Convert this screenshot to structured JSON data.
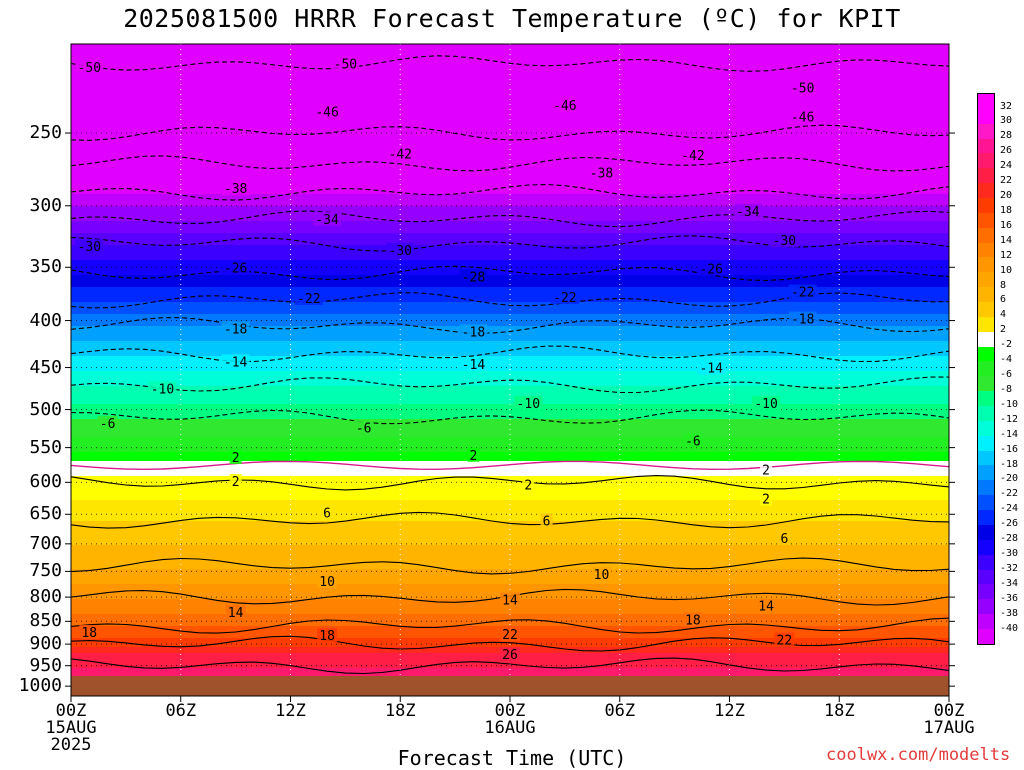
{
  "chart_data": {
    "type": "heatmap",
    "title": "2025081500 HRRR Forecast Temperature (ºC) for KPIT",
    "xlabel": "Forecast Time (UTC)",
    "ylabel": "",
    "x_ticks": [
      {
        "hour": 0,
        "lines": [
          "00Z",
          "15AUG",
          "2025"
        ]
      },
      {
        "hour": 6,
        "lines": [
          "06Z"
        ]
      },
      {
        "hour": 12,
        "lines": [
          "12Z"
        ]
      },
      {
        "hour": 18,
        "lines": [
          "18Z"
        ]
      },
      {
        "hour": 24,
        "lines": [
          "00Z",
          "16AUG"
        ]
      },
      {
        "hour": 30,
        "lines": [
          "06Z"
        ]
      },
      {
        "hour": 36,
        "lines": [
          "12Z"
        ]
      },
      {
        "hour": 42,
        "lines": [
          "18Z"
        ]
      },
      {
        "hour": 48,
        "lines": [
          "00Z",
          "17AUG"
        ]
      }
    ],
    "xlim": [
      0,
      48
    ],
    "y_ticks": [
      250,
      300,
      350,
      400,
      450,
      500,
      550,
      600,
      650,
      700,
      750,
      800,
      850,
      900,
      950,
      1000
    ],
    "ylim": [
      1025,
      200
    ],
    "y_scale": "log-pressure",
    "surface_pressure": 975,
    "colorbar_levels": [
      32,
      30,
      28,
      26,
      24,
      22,
      20,
      18,
      16,
      14,
      12,
      10,
      8,
      6,
      4,
      2,
      -2,
      -4,
      -6,
      -8,
      -10,
      -12,
      -14,
      -16,
      -18,
      -20,
      -22,
      -24,
      -26,
      -28,
      -30,
      -32,
      -34,
      -36,
      -38,
      -40
    ],
    "temperature_profile": [
      {
        "p": 210,
        "t": -50
      },
      {
        "p": 230,
        "t": -48
      },
      {
        "p": 250,
        "t": -46
      },
      {
        "p": 270,
        "t": -42
      },
      {
        "p": 290,
        "t": -38
      },
      {
        "p": 310,
        "t": -34
      },
      {
        "p": 330,
        "t": -30
      },
      {
        "p": 355,
        "t": -26
      },
      {
        "p": 380,
        "t": -22
      },
      {
        "p": 405,
        "t": -18
      },
      {
        "p": 435,
        "t": -14
      },
      {
        "p": 470,
        "t": -10
      },
      {
        "p": 510,
        "t": -6
      },
      {
        "p": 545,
        "t": -3
      },
      {
        "p": 575,
        "t": 0
      },
      {
        "p": 600,
        "t": 2
      },
      {
        "p": 640,
        "t": 5
      },
      {
        "p": 680,
        "t": 7
      },
      {
        "p": 720,
        "t": 9
      },
      {
        "p": 760,
        "t": 11
      },
      {
        "p": 800,
        "t": 14
      },
      {
        "p": 830,
        "t": 16
      },
      {
        "p": 860,
        "t": 18
      },
      {
        "p": 890,
        "t": 21
      },
      {
        "p": 920,
        "t": 24
      },
      {
        "p": 950,
        "t": 26
      },
      {
        "p": 975,
        "t": 27
      }
    ],
    "contour_labels": [
      {
        "text": "-50",
        "hour": 1,
        "p": 212
      },
      {
        "text": "-50",
        "hour": 15,
        "p": 210
      },
      {
        "text": "-50",
        "hour": 40,
        "p": 223
      },
      {
        "text": "-46",
        "hour": 14,
        "p": 237
      },
      {
        "text": "-46",
        "hour": 27,
        "p": 233
      },
      {
        "text": "-46",
        "hour": 40,
        "p": 240
      },
      {
        "text": "-42",
        "hour": 18,
        "p": 263
      },
      {
        "text": "-42",
        "hour": 34,
        "p": 264
      },
      {
        "text": "-38",
        "hour": 9,
        "p": 287
      },
      {
        "text": "-38",
        "hour": 29,
        "p": 276
      },
      {
        "text": "-34",
        "hour": 14,
        "p": 310
      },
      {
        "text": "-34",
        "hour": 37,
        "p": 304
      },
      {
        "text": "-30",
        "hour": 1,
        "p": 332
      },
      {
        "text": "-30",
        "hour": 18,
        "p": 335
      },
      {
        "text": "-30",
        "hour": 39,
        "p": 327
      },
      {
        "text": "-26",
        "hour": 9,
        "p": 350
      },
      {
        "text": "-26",
        "hour": 35,
        "p": 351
      },
      {
        "text": "-28",
        "hour": 22,
        "p": 358
      },
      {
        "text": "-22",
        "hour": 13,
        "p": 378
      },
      {
        "text": "-22",
        "hour": 27,
        "p": 377
      },
      {
        "text": "-22",
        "hour": 40,
        "p": 372
      },
      {
        "text": "-18",
        "hour": 9,
        "p": 408
      },
      {
        "text": "-18",
        "hour": 22,
        "p": 411
      },
      {
        "text": "-18",
        "hour": 40,
        "p": 398
      },
      {
        "text": "-14",
        "hour": 9,
        "p": 443
      },
      {
        "text": "-14",
        "hour": 22,
        "p": 446
      },
      {
        "text": "-14",
        "hour": 35,
        "p": 450
      },
      {
        "text": "-10",
        "hour": 5,
        "p": 474
      },
      {
        "text": "-10",
        "hour": 25,
        "p": 492
      },
      {
        "text": "-10",
        "hour": 38,
        "p": 492
      },
      {
        "text": "-6",
        "hour": 2,
        "p": 517
      },
      {
        "text": "-6",
        "hour": 16,
        "p": 523
      },
      {
        "text": "-6",
        "hour": 34,
        "p": 540
      },
      {
        "text": "2",
        "hour": 9,
        "p": 563
      },
      {
        "text": "2",
        "hour": 22,
        "p": 560
      },
      {
        "text": "2",
        "hour": 38,
        "p": 581
      },
      {
        "text": "2",
        "hour": 9,
        "p": 598
      },
      {
        "text": "2",
        "hour": 25,
        "p": 603
      },
      {
        "text": "2",
        "hour": 38,
        "p": 625
      },
      {
        "text": "6",
        "hour": 14,
        "p": 647
      },
      {
        "text": "6",
        "hour": 26,
        "p": 660
      },
      {
        "text": "6",
        "hour": 39,
        "p": 690
      },
      {
        "text": "10",
        "hour": 14,
        "p": 768
      },
      {
        "text": "10",
        "hour": 29,
        "p": 755
      },
      {
        "text": "14",
        "hour": 9,
        "p": 830
      },
      {
        "text": "14",
        "hour": 24,
        "p": 805
      },
      {
        "text": "14",
        "hour": 38,
        "p": 817
      },
      {
        "text": "18",
        "hour": 1,
        "p": 873
      },
      {
        "text": "18",
        "hour": 14,
        "p": 880
      },
      {
        "text": "18",
        "hour": 34,
        "p": 846
      },
      {
        "text": "22",
        "hour": 24,
        "p": 878
      },
      {
        "text": "22",
        "hour": 39,
        "p": 890
      },
      {
        "text": "26",
        "hour": 24,
        "p": 923
      }
    ]
  },
  "watermark": "coolwx.com/modelts",
  "colors": {
    "ground": "#a0522d",
    "freezing_line": "#d81b8c",
    "watermark": "#e23b3b"
  }
}
